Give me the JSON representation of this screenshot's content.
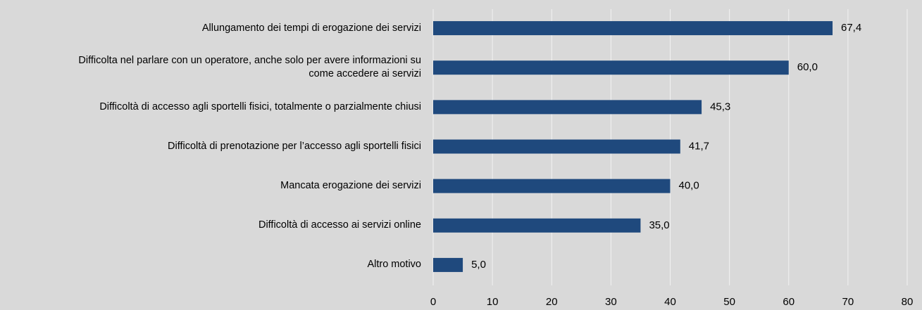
{
  "chart_data": {
    "type": "bar",
    "orientation": "horizontal",
    "categories": [
      "Allungamento dei tempi di erogazione dei servizi",
      "Difficolta nel parlare con un operatore, anche solo per avere informazioni su\ncome accedere ai servizi",
      "Difficoltà di accesso agli sportelli fisici, totalmente o parzialmente chiusi",
      "Difficoltà di prenotazione per l’accesso agli sportelli fisici",
      "Mancata erogazione dei servizi",
      "Difficoltà di accesso ai servizi online",
      "Altro motivo"
    ],
    "values": [
      67.4,
      60.0,
      45.3,
      41.7,
      40.0,
      35.0,
      5.0
    ],
    "value_labels": [
      "67,4",
      "60,0",
      "45,3",
      "41,7",
      "40,0",
      "35,0",
      "5,0"
    ],
    "color": "#1f497d",
    "xlim": [
      0,
      80
    ],
    "xticks": [
      0,
      10,
      20,
      30,
      40,
      50,
      60,
      70,
      80
    ],
    "grid": true
  }
}
